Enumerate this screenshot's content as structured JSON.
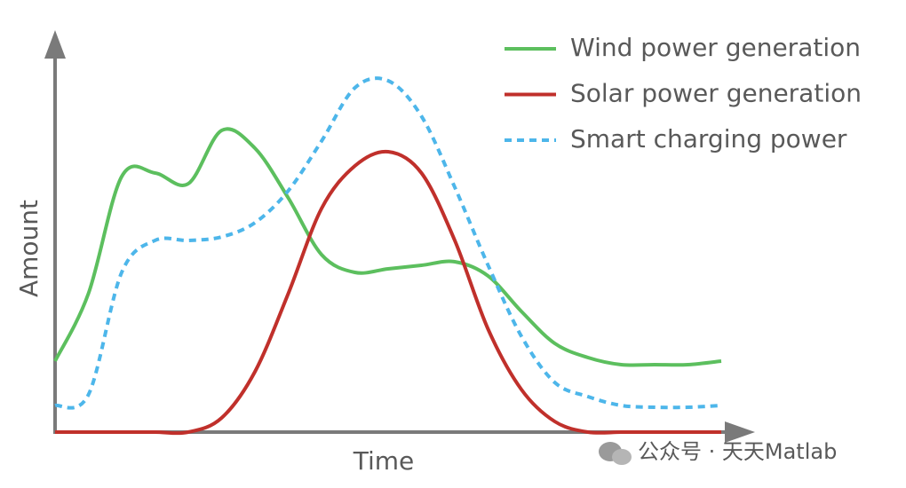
{
  "chart_data": {
    "type": "line",
    "x_label": "Time",
    "y_label": "Amount",
    "x": [
      0,
      5,
      10,
      15,
      20,
      25,
      30,
      35,
      40,
      45,
      50,
      55,
      60,
      65,
      70,
      75,
      80,
      85,
      90,
      95,
      100
    ],
    "xlim": [
      0,
      100
    ],
    "ylim": [
      0,
      100
    ],
    "legend": "top-right",
    "series": [
      {
        "name": "Wind power generation",
        "color": "#5cbf5e",
        "style": "solid",
        "values": [
          20,
          39,
          72,
          73,
          70,
          85,
          80,
          66,
          50,
          45,
          46,
          47,
          48,
          44,
          34,
          25,
          21,
          19,
          19,
          19,
          20
        ]
      },
      {
        "name": "Solar power generation",
        "color": "#c0302b",
        "style": "solid",
        "values": [
          0,
          0,
          0,
          0,
          0,
          4,
          17,
          39,
          63,
          75,
          79,
          73,
          54,
          29,
          12,
          3,
          0,
          0,
          0,
          0,
          0
        ]
      },
      {
        "name": "Smart charging power",
        "color": "#4db6ea",
        "style": "dashed",
        "values": [
          7.5,
          10.5,
          45,
          54,
          54,
          55,
          59,
          68,
          82,
          97,
          99,
          89,
          69,
          47,
          27,
          14,
          10,
          7.5,
          7,
          7,
          7.5
        ]
      }
    ],
    "watermark": "公众号 · 天天Matlab"
  }
}
